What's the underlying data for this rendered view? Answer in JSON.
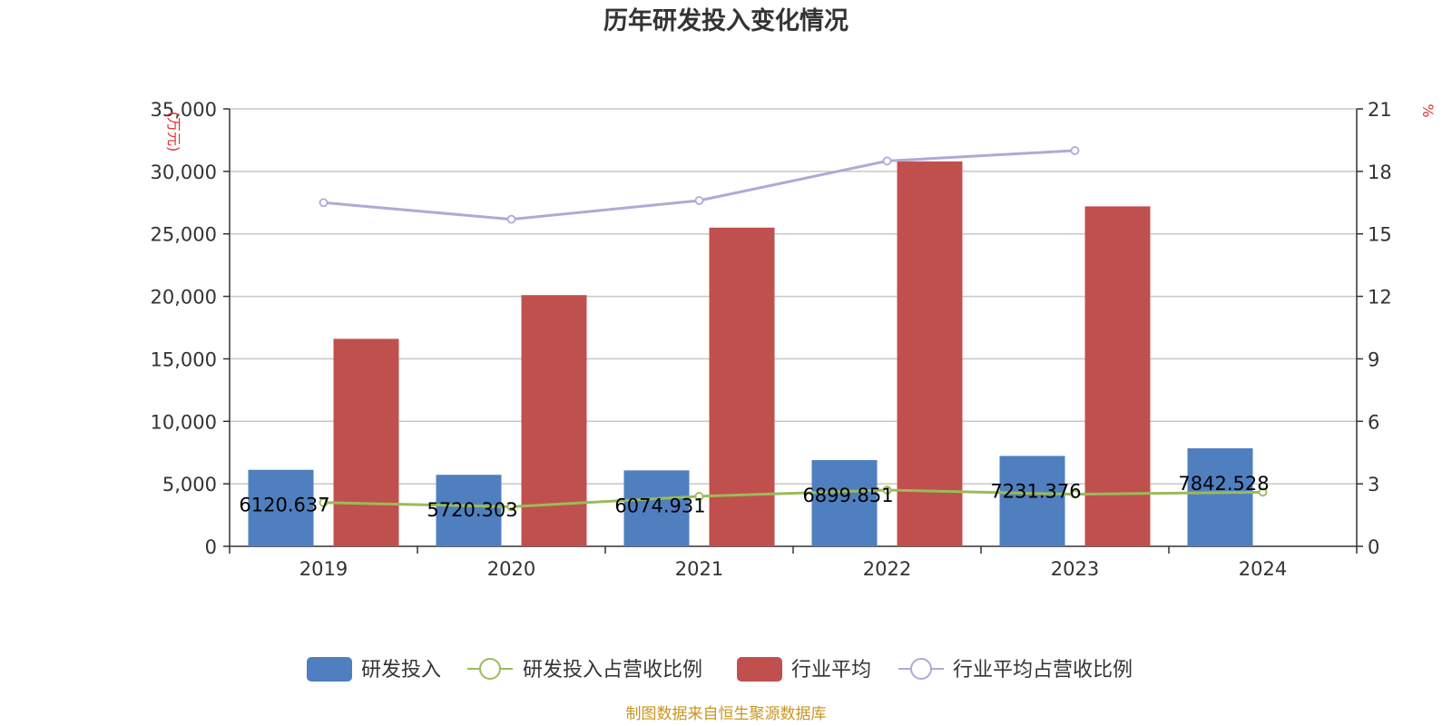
{
  "chart_data": {
    "type": "bar",
    "title": "历年研发投入变化情况",
    "categories": [
      "2019",
      "2020",
      "2021",
      "2022",
      "2023",
      "2024"
    ],
    "left_axis": {
      "unit": "(万元)",
      "ylim": [
        0,
        35000
      ],
      "ticks": [
        0,
        5000,
        10000,
        15000,
        20000,
        25000,
        30000,
        35000
      ],
      "tick_labels": [
        "0",
        "5,000",
        "10,000",
        "15,000",
        "20,000",
        "25,000",
        "30,000",
        "35,000"
      ]
    },
    "right_axis": {
      "unit": "%",
      "ylim": [
        0,
        21
      ],
      "ticks": [
        0,
        3,
        6,
        9,
        12,
        15,
        18,
        21
      ],
      "tick_labels": [
        "0",
        "3",
        "6",
        "9",
        "12",
        "15",
        "18",
        "21"
      ]
    },
    "grid": true,
    "legend_position": "bottom",
    "series": [
      {
        "name": "研发投入",
        "type": "bar",
        "axis": "left",
        "color": "#4f7fbf",
        "values": [
          6120.637,
          5720.303,
          6074.931,
          6899.851,
          7231.376,
          7842.528
        ],
        "labels": [
          "6120.637",
          "5720.303",
          "6074.931",
          "6899.851",
          "7231.376",
          "7842.528"
        ]
      },
      {
        "name": "研发投入占营收比例",
        "type": "line",
        "axis": "right",
        "color": "#9bbb59",
        "values": [
          2.1,
          1.9,
          2.4,
          2.7,
          2.5,
          2.6
        ]
      },
      {
        "name": "行业平均",
        "type": "bar",
        "axis": "left",
        "color": "#c0504d",
        "values": [
          16600,
          20100,
          25500,
          30800,
          27200,
          null
        ]
      },
      {
        "name": "行业平均占营收比例",
        "type": "line",
        "axis": "right",
        "color": "#b4a7d6",
        "values": [
          16.5,
          15.7,
          16.6,
          18.5,
          19.0,
          null
        ]
      }
    ],
    "source": "制图数据来自恒生聚源数据库"
  }
}
